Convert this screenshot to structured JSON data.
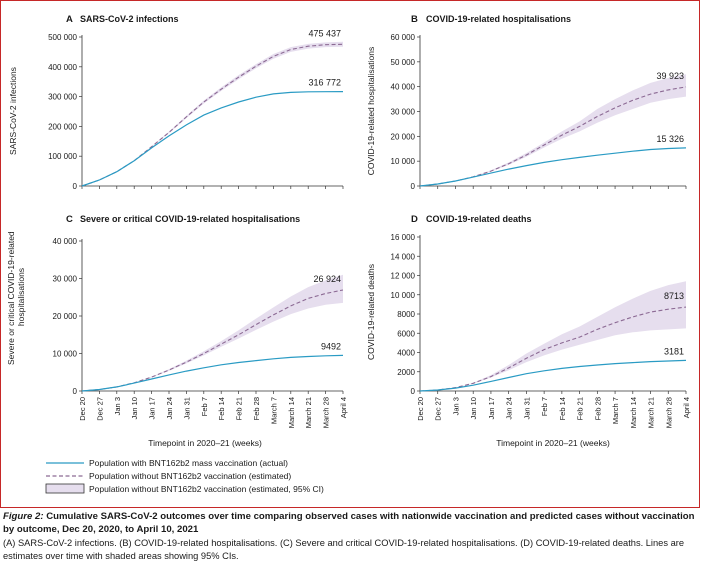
{
  "x_axis_title": "Timepoint in 2020–21 (weeks)",
  "week_labels": [
    "Dec 20",
    "Dec 27",
    "Jan 3",
    "Jan 10",
    "Jan 17",
    "Jan 24",
    "Jan 31",
    "Feb 7",
    "Feb 14",
    "Feb 21",
    "Feb 28",
    "March 7",
    "March 14",
    "March 21",
    "March 28",
    "April 4"
  ],
  "legend": {
    "actual": "Population with BNT162b2 mass vaccination (actual)",
    "estimated": "Population without BNT162b2 vaccination (estimated)",
    "ci": "Population without BNT162b2 vaccination (estimated, 95% CI)"
  },
  "colors": {
    "actual": "#2a9bc4",
    "estimated": "#8c6a94",
    "ci_fill": "#e6deee",
    "axis": "#333333",
    "frame": "#c62828"
  },
  "caption": {
    "figure_label": "Figure 2:",
    "title": "Cumulative SARS-CoV-2 outcomes over time comparing observed cases with nationwide vaccination and predicted cases without vaccination by outcome, Dec 20, 2020, to April 10, 2021",
    "body": "(A) SARS-CoV-2 infections. (B) COVID-19-related hospitalisations. (C) Severe and critical COVID-19-related hospitalisations. (D) COVID-19-related deaths. Lines are estimates over time with shaded areas showing 95% CIs."
  },
  "chart_data": [
    {
      "type": "line",
      "panel_letter": "A",
      "title": "SARS-CoV-2 infections",
      "ylabel": "SARS-CoV-2 infections",
      "ylim": [
        0,
        500000
      ],
      "yticks": [
        0,
        100000,
        200000,
        300000,
        400000,
        500000
      ],
      "ytick_labels": [
        "0",
        "100 000",
        "200 000",
        "300 000",
        "400 000",
        "500 000"
      ],
      "show_x_tick_labels": false,
      "actual": [
        0,
        20000,
        48000,
        85000,
        128000,
        168000,
        205000,
        238000,
        262000,
        282000,
        298000,
        309000,
        314000,
        316000,
        316500,
        316772
      ],
      "estimated": [
        0,
        20000,
        48000,
        85000,
        132000,
        180000,
        232000,
        282000,
        325000,
        365000,
        402000,
        435000,
        458000,
        469000,
        474000,
        475437
      ],
      "ci_lower": [
        0,
        20000,
        48000,
        85000,
        131000,
        177000,
        228000,
        277000,
        319000,
        358000,
        395000,
        427000,
        450000,
        461000,
        466000,
        467000
      ],
      "ci_upper": [
        0,
        20000,
        48000,
        85000,
        133000,
        183000,
        236000,
        287000,
        331000,
        372000,
        409000,
        443000,
        466000,
        477000,
        482000,
        484000
      ],
      "end_label_actual": "316 772",
      "end_label_estimated": "475 437"
    },
    {
      "type": "line",
      "panel_letter": "B",
      "title": "COVID-19-related hospitalisations",
      "ylabel": "COVID-19-related hospitalisations",
      "ylim": [
        0,
        60000
      ],
      "yticks": [
        0,
        10000,
        20000,
        30000,
        40000,
        50000,
        60000
      ],
      "ytick_labels": [
        "0",
        "10 000",
        "20 000",
        "30 000",
        "40 000",
        "50 000",
        "60 000"
      ],
      "show_x_tick_labels": false,
      "actual": [
        0,
        800,
        2000,
        3600,
        5200,
        6800,
        8200,
        9500,
        10600,
        11500,
        12400,
        13200,
        14000,
        14700,
        15100,
        15326
      ],
      "estimated": [
        0,
        800,
        2000,
        3700,
        6000,
        9000,
        12500,
        16500,
        20500,
        24000,
        28000,
        31500,
        34500,
        37000,
        38700,
        39923
      ],
      "ci_lower": [
        0,
        800,
        2000,
        3600,
        5800,
        8500,
        11800,
        15500,
        19000,
        22000,
        25500,
        28500,
        31000,
        33500,
        35000,
        36000
      ],
      "ci_upper": [
        0,
        800,
        2000,
        3800,
        6300,
        9500,
        13300,
        17500,
        22000,
        26000,
        31000,
        35000,
        38500,
        41500,
        43500,
        45000
      ],
      "end_label_actual": "15 326",
      "end_label_estimated": "39 923"
    },
    {
      "type": "line",
      "panel_letter": "C",
      "title": "Severe or critical COVID-19-related hospitalisations",
      "ylabel": "Severe or critical COVID-19-related hospitalisations",
      "ylim": [
        0,
        40000
      ],
      "yticks": [
        0,
        10000,
        20000,
        30000,
        40000
      ],
      "ytick_labels": [
        "0",
        "10 000",
        "20 000",
        "30 000",
        "40 000"
      ],
      "show_x_tick_labels": true,
      "actual": [
        0,
        400,
        1100,
        2100,
        3200,
        4300,
        5300,
        6200,
        7000,
        7600,
        8100,
        8600,
        8950,
        9200,
        9380,
        9492
      ],
      "estimated": [
        0,
        400,
        1100,
        2200,
        3700,
        5600,
        7700,
        10000,
        12500,
        15000,
        17700,
        20300,
        22700,
        24700,
        26000,
        26924
      ],
      "ci_lower": [
        0,
        400,
        1100,
        2150,
        3600,
        5350,
        7350,
        9500,
        11800,
        14000,
        16300,
        18500,
        20500,
        22000,
        23000,
        23500
      ],
      "ci_upper": [
        0,
        400,
        1100,
        2250,
        3800,
        5850,
        8100,
        10600,
        13300,
        16200,
        19300,
        22300,
        25200,
        27700,
        29500,
        31000
      ],
      "end_label_actual": "9492",
      "end_label_estimated": "26 924"
    },
    {
      "type": "line",
      "panel_letter": "D",
      "title": "COVID-19-related deaths",
      "ylabel": "COVID-19-related deaths",
      "ylim": [
        0,
        16000
      ],
      "yticks": [
        0,
        2000,
        4000,
        6000,
        8000,
        10000,
        12000,
        14000,
        16000
      ],
      "ytick_labels": [
        "0",
        "2000",
        "4000",
        "6000",
        "8000",
        "10 000",
        "12 000",
        "14 000",
        "16 000"
      ],
      "show_x_tick_labels": true,
      "actual": [
        0,
        100,
        300,
        600,
        1000,
        1400,
        1800,
        2100,
        2350,
        2550,
        2700,
        2850,
        2950,
        3050,
        3120,
        3181
      ],
      "estimated": [
        0,
        100,
        350,
        800,
        1500,
        2400,
        3400,
        4300,
        5000,
        5600,
        6400,
        7100,
        7700,
        8200,
        8500,
        8713
      ],
      "ci_lower": [
        0,
        100,
        340,
        750,
        1400,
        2150,
        3000,
        3700,
        4300,
        4800,
        5300,
        5800,
        6100,
        6300,
        6400,
        6500
      ],
      "ci_upper": [
        0,
        100,
        360,
        850,
        1650,
        2700,
        3900,
        4900,
        5900,
        6700,
        7700,
        8700,
        9600,
        10400,
        11000,
        11400
      ],
      "end_label_actual": "3181",
      "end_label_estimated": "8713"
    }
  ]
}
